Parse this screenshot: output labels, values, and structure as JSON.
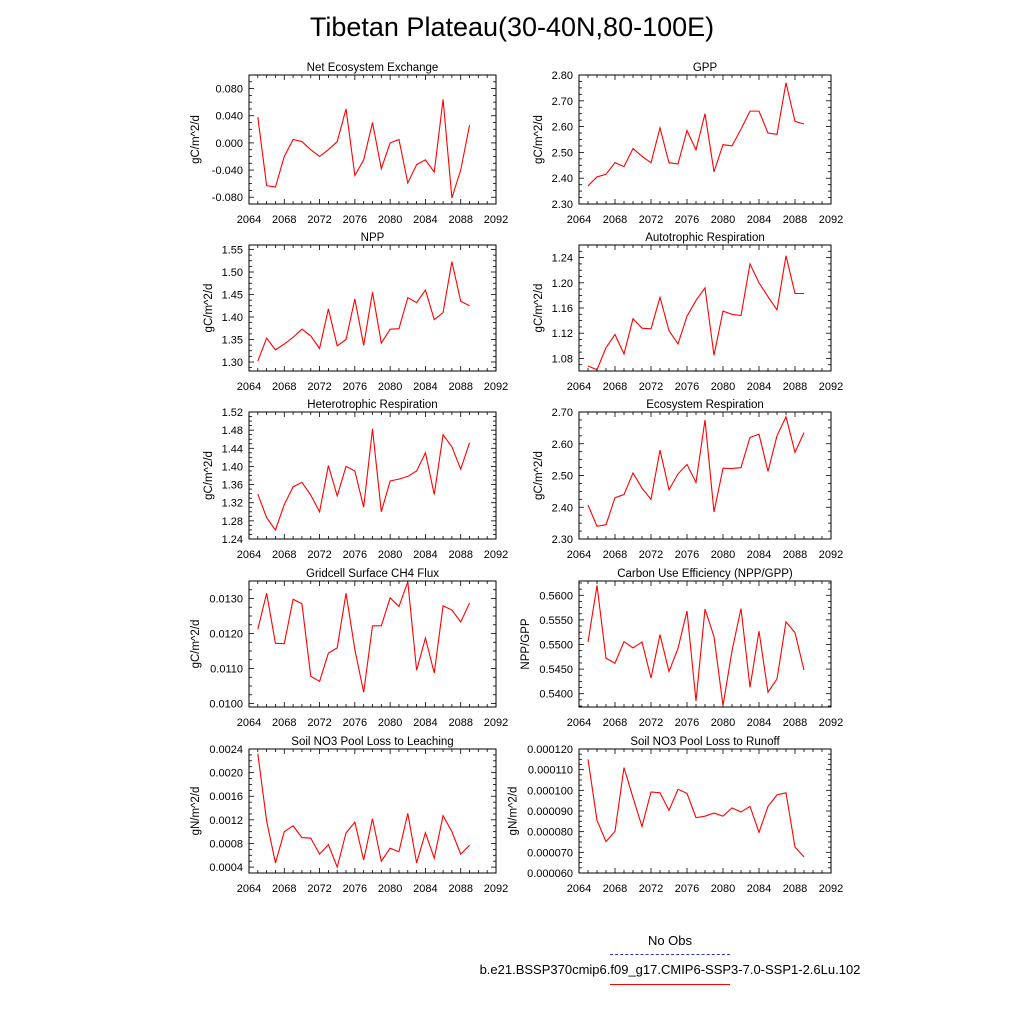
{
  "title": "Tibetan Plateau(30-40N,80-100E)",
  "legend": {
    "obs_label": "No Obs",
    "case_label": "b.e21.BSSP370cmip6.f09_g17.CMIP6-SSP3-7.0-SSP1-2.6Lu.102",
    "obs_color": "#3333cc",
    "case_color": "#ff0000"
  },
  "chart_data": [
    {
      "type": "line",
      "title": "Net Ecosystem Exchange",
      "ylabel": "gC/m^2/d",
      "xlim": [
        2064,
        2092
      ],
      "ylim": [
        -0.09,
        0.1
      ],
      "xticks": [
        2064,
        2068,
        2072,
        2076,
        2080,
        2084,
        2088,
        2092
      ],
      "yticks": [
        -0.08,
        0,
        0.08
      ],
      "ytick_labels": [
        "-0.080",
        "-0.040",
        "0.000",
        "0.040",
        "0.080"
      ],
      "ytick_values": [
        -0.08,
        -0.04,
        0,
        0.04,
        0.08
      ],
      "x": [
        2065,
        2066,
        2067,
        2068,
        2069,
        2070,
        2071,
        2072,
        2073,
        2074,
        2075,
        2076,
        2077,
        2078,
        2079,
        2080,
        2081,
        2082,
        2083,
        2084,
        2085,
        2086,
        2087,
        2088,
        2089
      ],
      "values": [
        0.038,
        -0.063,
        -0.065,
        -0.02,
        0.005,
        0.002,
        -0.01,
        -0.02,
        -0.01,
        0.002,
        0.05,
        -0.048,
        -0.025,
        0.03,
        -0.038,
        0.0,
        0.005,
        -0.059,
        -0.032,
        -0.025,
        -0.043,
        0.064,
        -0.081,
        -0.04,
        0.026
      ]
    },
    {
      "type": "line",
      "title": "GPP",
      "ylabel": "gC/m^2/d",
      "xlim": [
        2064,
        2092
      ],
      "ylim": [
        2.3,
        2.8
      ],
      "xticks": [
        2064,
        2068,
        2072,
        2076,
        2080,
        2084,
        2088,
        2092
      ],
      "ytick_labels": [
        "2.30",
        "2.40",
        "2.50",
        "2.60",
        "2.70",
        "2.80"
      ],
      "ytick_values": [
        2.3,
        2.4,
        2.5,
        2.6,
        2.7,
        2.8
      ],
      "x": [
        2065,
        2066,
        2067,
        2068,
        2069,
        2070,
        2071,
        2072,
        2073,
        2074,
        2075,
        2076,
        2077,
        2078,
        2079,
        2080,
        2081,
        2082,
        2083,
        2084,
        2085,
        2086,
        2087,
        2088,
        2089
      ],
      "values": [
        2.37,
        2.405,
        2.415,
        2.46,
        2.445,
        2.515,
        2.485,
        2.46,
        2.595,
        2.46,
        2.455,
        2.585,
        2.51,
        2.65,
        2.425,
        2.53,
        2.525,
        2.59,
        2.66,
        2.66,
        2.575,
        2.57,
        2.77,
        2.62,
        2.61
      ]
    },
    {
      "type": "line",
      "title": "NPP",
      "ylabel": "gC/m^2/d",
      "xlim": [
        2064,
        2092
      ],
      "ylim": [
        1.28,
        1.56
      ],
      "xticks": [
        2064,
        2068,
        2072,
        2076,
        2080,
        2084,
        2088,
        2092
      ],
      "ytick_labels": [
        "1.30",
        "1.35",
        "1.40",
        "1.45",
        "1.50",
        "1.55"
      ],
      "ytick_values": [
        1.3,
        1.35,
        1.4,
        1.45,
        1.5,
        1.55
      ],
      "x": [
        2065,
        2066,
        2067,
        2068,
        2069,
        2070,
        2071,
        2072,
        2073,
        2074,
        2075,
        2076,
        2077,
        2078,
        2079,
        2080,
        2081,
        2082,
        2083,
        2084,
        2085,
        2086,
        2087,
        2088,
        2089
      ],
      "values": [
        1.302,
        1.353,
        1.327,
        1.34,
        1.355,
        1.373,
        1.358,
        1.33,
        1.418,
        1.336,
        1.35,
        1.44,
        1.337,
        1.455,
        1.342,
        1.373,
        1.374,
        1.443,
        1.432,
        1.46,
        1.394,
        1.41,
        1.523,
        1.435,
        1.425
      ]
    },
    {
      "type": "line",
      "title": "Autotrophic Respiration",
      "ylabel": "gC/m^2/d",
      "xlim": [
        2064,
        2092
      ],
      "ylim": [
        1.06,
        1.26
      ],
      "xticks": [
        2064,
        2068,
        2072,
        2076,
        2080,
        2084,
        2088,
        2092
      ],
      "ytick_labels": [
        "1.08",
        "1.12",
        "1.16",
        "1.20",
        "1.24"
      ],
      "ytick_values": [
        1.08,
        1.12,
        1.16,
        1.2,
        1.24
      ],
      "x": [
        2065,
        2066,
        2067,
        2068,
        2069,
        2070,
        2071,
        2072,
        2073,
        2074,
        2075,
        2076,
        2077,
        2078,
        2079,
        2080,
        2081,
        2082,
        2083,
        2084,
        2085,
        2086,
        2087,
        2088,
        2089
      ],
      "values": [
        1.068,
        1.062,
        1.097,
        1.118,
        1.087,
        1.143,
        1.128,
        1.127,
        1.177,
        1.124,
        1.103,
        1.147,
        1.172,
        1.192,
        1.085,
        1.155,
        1.15,
        1.148,
        1.23,
        1.2,
        1.178,
        1.157,
        1.243,
        1.183,
        1.183
      ]
    },
    {
      "type": "line",
      "title": "Heterotrophic Respiration",
      "ylabel": "gC/m^2/d",
      "xlim": [
        2064,
        2092
      ],
      "ylim": [
        1.24,
        1.52
      ],
      "xticks": [
        2064,
        2068,
        2072,
        2076,
        2080,
        2084,
        2088,
        2092
      ],
      "ytick_labels": [
        "1.24",
        "1.28",
        "1.32",
        "1.36",
        "1.40",
        "1.44",
        "1.48",
        "1.52"
      ],
      "ytick_values": [
        1.24,
        1.28,
        1.32,
        1.36,
        1.4,
        1.44,
        1.48,
        1.52
      ],
      "x": [
        2065,
        2066,
        2067,
        2068,
        2069,
        2070,
        2071,
        2072,
        2073,
        2074,
        2075,
        2076,
        2077,
        2078,
        2079,
        2080,
        2081,
        2082,
        2083,
        2084,
        2085,
        2086,
        2087,
        2088,
        2089
      ],
      "values": [
        1.339,
        1.287,
        1.26,
        1.316,
        1.355,
        1.365,
        1.337,
        1.3,
        1.402,
        1.335,
        1.4,
        1.39,
        1.31,
        1.483,
        1.3,
        1.368,
        1.372,
        1.378,
        1.39,
        1.43,
        1.338,
        1.47,
        1.443,
        1.394,
        1.452
      ]
    },
    {
      "type": "line",
      "title": "Ecosystem Respiration",
      "ylabel": "gC/m^2/d",
      "xlim": [
        2064,
        2092
      ],
      "ylim": [
        2.3,
        2.7
      ],
      "xticks": [
        2064,
        2068,
        2072,
        2076,
        2080,
        2084,
        2088,
        2092
      ],
      "ytick_labels": [
        "2.30",
        "2.40",
        "2.50",
        "2.60",
        "2.70"
      ],
      "ytick_values": [
        2.3,
        2.4,
        2.5,
        2.6,
        2.7
      ],
      "x": [
        2065,
        2066,
        2067,
        2068,
        2069,
        2070,
        2071,
        2072,
        2073,
        2074,
        2075,
        2076,
        2077,
        2078,
        2079,
        2080,
        2081,
        2082,
        2083,
        2084,
        2085,
        2086,
        2087,
        2088,
        2089
      ],
      "values": [
        2.407,
        2.34,
        2.345,
        2.43,
        2.44,
        2.508,
        2.46,
        2.425,
        2.58,
        2.455,
        2.505,
        2.535,
        2.478,
        2.675,
        2.385,
        2.523,
        2.522,
        2.525,
        2.62,
        2.63,
        2.513,
        2.625,
        2.685,
        2.573,
        2.635
      ]
    },
    {
      "type": "line",
      "title": "Gridcell Surface CH4 Flux",
      "ylabel": "gC/m^2/d",
      "xlim": [
        2064,
        2092
      ],
      "ylim": [
        0.0099,
        0.0135
      ],
      "xticks": [
        2064,
        2068,
        2072,
        2076,
        2080,
        2084,
        2088,
        2092
      ],
      "ytick_labels": [
        "0.0100",
        "0.0110",
        "0.0120",
        "0.0130"
      ],
      "ytick_values": [
        0.01,
        0.011,
        0.012,
        0.013
      ],
      "x": [
        2065,
        2066,
        2067,
        2068,
        2069,
        2070,
        2071,
        2072,
        2073,
        2074,
        2075,
        2076,
        2077,
        2078,
        2079,
        2080,
        2081,
        2082,
        2083,
        2084,
        2085,
        2086,
        2087,
        2088,
        2089
      ],
      "values": [
        0.01212,
        0.01315,
        0.01172,
        0.01171,
        0.01298,
        0.01285,
        0.01078,
        0.01063,
        0.01144,
        0.01159,
        0.01315,
        0.01154,
        0.01032,
        0.01222,
        0.01222,
        0.01302,
        0.01277,
        0.01348,
        0.01095,
        0.01187,
        0.01087,
        0.01279,
        0.01267,
        0.01233,
        0.01287
      ]
    },
    {
      "type": "line",
      "title": "Carbon Use Efficiency (NPP/GPP)",
      "ylabel": "NPP/GPP",
      "xlim": [
        2064,
        2092
      ],
      "ylim": [
        0.5373,
        0.5629
      ],
      "xticks": [
        2064,
        2068,
        2072,
        2076,
        2080,
        2084,
        2088,
        2092
      ],
      "ytick_labels": [
        "0.5400",
        "0.5450",
        "0.5500",
        "0.5550",
        "0.5600"
      ],
      "ytick_values": [
        0.54,
        0.545,
        0.55,
        0.555,
        0.56
      ],
      "x": [
        2065,
        2066,
        2067,
        2068,
        2069,
        2070,
        2071,
        2072,
        2073,
        2074,
        2075,
        2076,
        2077,
        2078,
        2079,
        2080,
        2081,
        2082,
        2083,
        2084,
        2085,
        2086,
        2087,
        2088,
        2089
      ],
      "values": [
        0.5505,
        0.562,
        0.5472,
        0.5462,
        0.5506,
        0.5493,
        0.5505,
        0.5432,
        0.552,
        0.5445,
        0.5492,
        0.5568,
        0.5385,
        0.5572,
        0.5516,
        0.5376,
        0.5487,
        0.5573,
        0.5413,
        0.5527,
        0.5403,
        0.543,
        0.5546,
        0.5524,
        0.5448
      ]
    },
    {
      "type": "line",
      "title": "Soil NO3 Pool Loss to Leaching",
      "ylabel": "gN/m^2/d",
      "xlim": [
        2064,
        2092
      ],
      "ylim": [
        0.0003,
        0.0024
      ],
      "xticks": [
        2064,
        2068,
        2072,
        2076,
        2080,
        2084,
        2088,
        2092
      ],
      "ytick_labels": [
        "0.0004",
        "0.0008",
        "0.0012",
        "0.0016",
        "0.0020",
        "0.0024"
      ],
      "ytick_values": [
        0.0004,
        0.0008,
        0.0012,
        0.0016,
        0.002,
        0.0024
      ],
      "x": [
        2065,
        2066,
        2067,
        2068,
        2069,
        2070,
        2071,
        2072,
        2073,
        2074,
        2075,
        2076,
        2077,
        2078,
        2079,
        2080,
        2081,
        2082,
        2083,
        2084,
        2085,
        2086,
        2087,
        2088,
        2089
      ],
      "values": [
        0.00232,
        0.00118,
        0.00047,
        0.001,
        0.0011,
        0.0009,
        0.00089,
        0.00062,
        0.00078,
        0.0004,
        0.00098,
        0.00116,
        0.00052,
        0.00122,
        0.0005,
        0.00072,
        0.00066,
        0.00131,
        0.00047,
        0.00098,
        0.00055,
        0.00127,
        0.001,
        0.00062,
        0.00077
      ]
    },
    {
      "type": "line",
      "title": "Soil NO3 Pool Loss to Runoff",
      "ylabel": "gN/m^2/d",
      "xlim": [
        2064,
        2092
      ],
      "ylim": [
        6e-05,
        0.00012
      ],
      "xticks": [
        2064,
        2068,
        2072,
        2076,
        2080,
        2084,
        2088,
        2092
      ],
      "ytick_labels": [
        "0.000060",
        "0.000070",
        "0.000080",
        "0.000090",
        "0.000100",
        "0.000110",
        "0.000120"
      ],
      "ytick_values": [
        6e-05,
        7e-05,
        8e-05,
        9e-05,
        0.0001,
        0.00011,
        0.00012
      ],
      "x": [
        2065,
        2066,
        2067,
        2068,
        2069,
        2070,
        2071,
        2072,
        2073,
        2074,
        2075,
        2076,
        2077,
        2078,
        2079,
        2080,
        2081,
        2082,
        2083,
        2084,
        2085,
        2086,
        2087,
        2088,
        2089
      ],
      "values": [
        0.000115,
        8.55e-05,
        7.52e-05,
        8.02e-05,
        0.000111,
        9.65e-05,
        8.25e-05,
        9.92e-05,
        9.88e-05,
        9.03e-05,
        0.0001005,
        9.85e-05,
        8.68e-05,
        8.75e-05,
        8.9e-05,
        8.75e-05,
        9.15e-05,
        8.95e-05,
        9.22e-05,
        7.97e-05,
        9.22e-05,
        9.78e-05,
        9.88e-05,
        7.25e-05,
        6.78e-05
      ]
    }
  ]
}
